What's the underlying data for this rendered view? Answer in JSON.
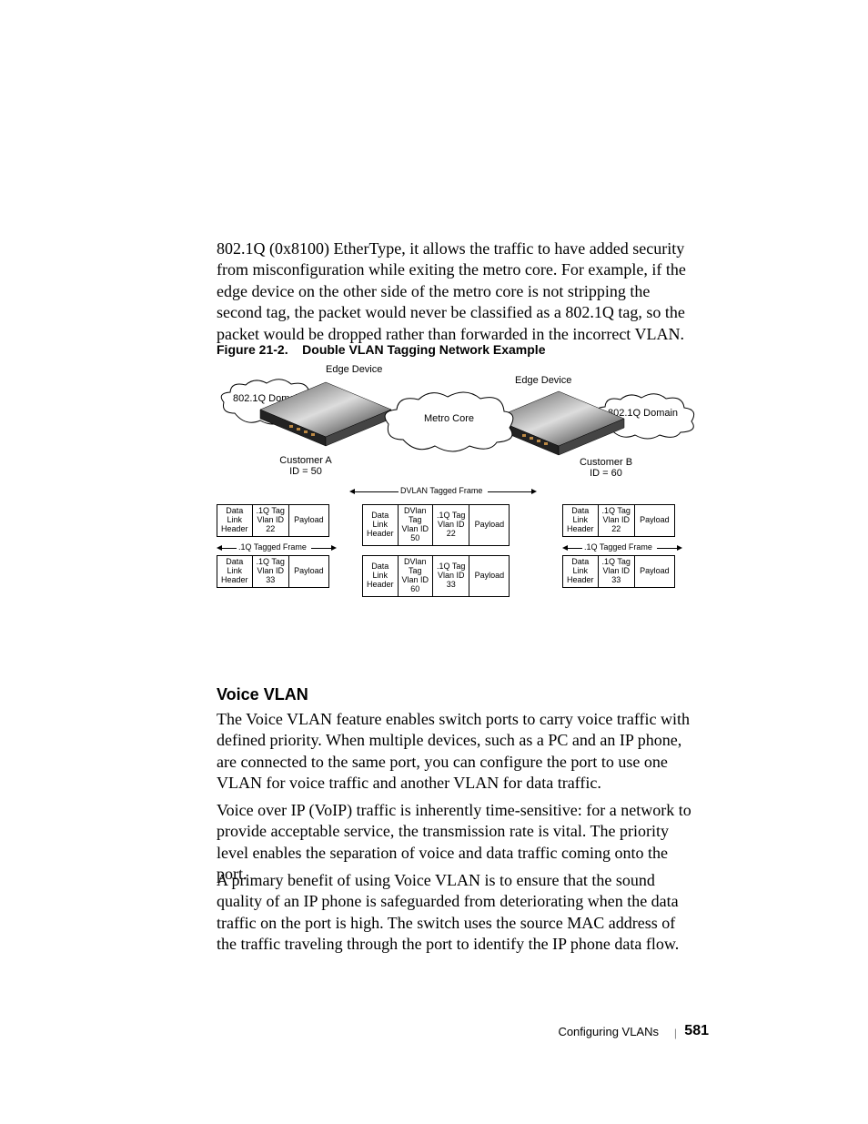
{
  "intro_paragraph": "802.1Q (0x8100) EtherType, it allows the traffic to have added security from misconfiguration while exiting the metro core. For example, if the edge device on the other side of the metro core is not stripping the second tag, the packet would never be classified as a 802.1Q tag, so the packet would be dropped rather than forwarded in the incorrect VLAN.",
  "figure_caption_num": "Figure 21-2.",
  "figure_caption_title": "Double VLAN Tagging Network Example",
  "diagram": {
    "edge_device_label": "Edge Device",
    "domain_label": "802.1Q Domain",
    "metro_core_label": "Metro Core",
    "customer_a_label": "Customer A",
    "customer_a_id": "ID = 50",
    "customer_b_label": "Customer B",
    "customer_b_id": "ID = 60",
    "dvlan_frame_label": "DVLAN Tagged Frame",
    "q_frame_label": ".1Q Tagged Frame",
    "cells": {
      "data_link_header": "Data\nLink\nHeader",
      "q_tag_22": ".1Q Tag\nVlan ID\n22",
      "q_tag_33": ".1Q Tag\nVlan ID\n33",
      "payload": "Payload",
      "dvlan_50": "DVlan\nTag\nVlan ID\n50",
      "dvlan_60": "DVlan\nTag\nVlan ID\n60"
    }
  },
  "section_heading": "Voice VLAN",
  "para2": "The Voice VLAN feature enables switch ports to carry voice traffic with defined priority. When multiple devices, such as a PC and an IP phone, are connected to the same port, you can configure the port to use one VLAN for voice traffic and another VLAN for data traffic.",
  "para3": "Voice over IP (VoIP) traffic is inherently time-sensitive: for a network to provide acceptable service, the transmission rate is vital. The priority level enables the separation of voice and data traffic coming onto the port.",
  "para4": "A primary benefit of using Voice VLAN is to ensure that the sound quality of an IP phone is safeguarded from deteriorating when the data traffic on the port is high. The switch uses the source MAC address of the traffic traveling through the port to identify the IP phone data flow.",
  "footer_chapter": "Configuring VLANs",
  "footer_page": "581"
}
